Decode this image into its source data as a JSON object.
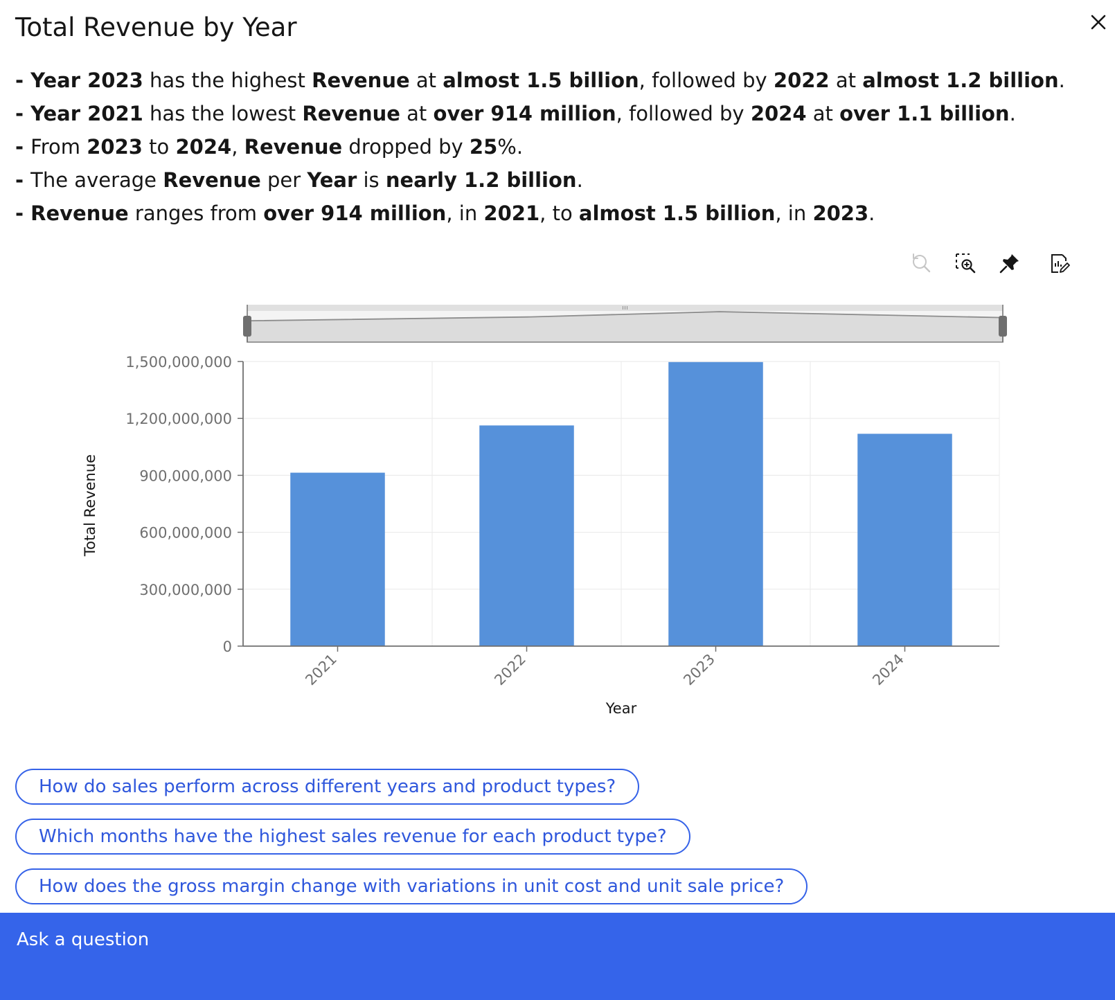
{
  "header": {
    "title": "Total Revenue by Year",
    "close_icon": "close-icon"
  },
  "insights": [
    [
      {
        "t": "- ",
        "b": true
      },
      {
        "t": "Year 2023",
        "b": true
      },
      {
        "t": " has the highest "
      },
      {
        "t": "Revenue",
        "b": true
      },
      {
        "t": " at "
      },
      {
        "t": "almost 1.5 billion",
        "b": true
      },
      {
        "t": ", followed by "
      },
      {
        "t": "2022",
        "b": true
      },
      {
        "t": " at "
      },
      {
        "t": "almost 1.2 billion",
        "b": true
      },
      {
        "t": "."
      }
    ],
    [
      {
        "t": "- ",
        "b": true
      },
      {
        "t": "Year 2021",
        "b": true
      },
      {
        "t": " has the lowest "
      },
      {
        "t": "Revenue",
        "b": true
      },
      {
        "t": " at "
      },
      {
        "t": "over 914 million",
        "b": true
      },
      {
        "t": ", followed by "
      },
      {
        "t": "2024",
        "b": true
      },
      {
        "t": " at "
      },
      {
        "t": "over 1.1 billion",
        "b": true
      },
      {
        "t": "."
      }
    ],
    [
      {
        "t": "- ",
        "b": true
      },
      {
        "t": "From "
      },
      {
        "t": "2023",
        "b": true
      },
      {
        "t": " to "
      },
      {
        "t": "2024",
        "b": true
      },
      {
        "t": ", "
      },
      {
        "t": "Revenue",
        "b": true
      },
      {
        "t": " dropped by "
      },
      {
        "t": "25",
        "b": true
      },
      {
        "t": "%."
      }
    ],
    [
      {
        "t": "- ",
        "b": true
      },
      {
        "t": "The average "
      },
      {
        "t": "Revenue",
        "b": true
      },
      {
        "t": " per "
      },
      {
        "t": "Year",
        "b": true
      },
      {
        "t": " is "
      },
      {
        "t": "nearly 1.2 billion",
        "b": true
      },
      {
        "t": "."
      }
    ],
    [
      {
        "t": "- ",
        "b": true
      },
      {
        "t": "Revenue",
        "b": true
      },
      {
        "t": " ranges from "
      },
      {
        "t": "over 914 million",
        "b": true
      },
      {
        "t": ", in "
      },
      {
        "t": "2021",
        "b": true
      },
      {
        "t": ", to "
      },
      {
        "t": "almost 1.5 billion",
        "b": true
      },
      {
        "t": ", in "
      },
      {
        "t": "2023",
        "b": true
      },
      {
        "t": "."
      }
    ]
  ],
  "toolbar": {
    "icons": [
      "reset-zoom-icon",
      "zoom-area-icon",
      "pin-icon",
      "edit-chart-icon"
    ]
  },
  "chart_data": {
    "type": "bar",
    "title": "",
    "categories": [
      "2021",
      "2022",
      "2023",
      "2024"
    ],
    "values": [
      914000000,
      1163000000,
      1497000000,
      1119000000
    ],
    "xlabel": "Year",
    "ylabel": "Total Revenue",
    "ylim": [
      0,
      1500000000
    ],
    "yticks": [
      0,
      300000000,
      600000000,
      900000000,
      1200000000,
      1500000000
    ],
    "ytick_labels": [
      "0",
      "300,000,000",
      "600,000,000",
      "900,000,000",
      "1,200,000,000",
      "1,500,000,000"
    ],
    "grid": true,
    "zoom_slider": true,
    "colors": {
      "bar": "#5691da",
      "axis": "#6f6f6f",
      "grid": "#ececec"
    }
  },
  "suggestions": [
    "How do sales perform across different years and product types?",
    "Which months have the highest sales revenue for each product type?",
    "How does the gross margin change with variations in unit cost and unit sale price?"
  ],
  "ask": {
    "placeholder": "Ask a question"
  },
  "colors": {
    "accent": "#3564ea",
    "link": "#2f57dc"
  }
}
